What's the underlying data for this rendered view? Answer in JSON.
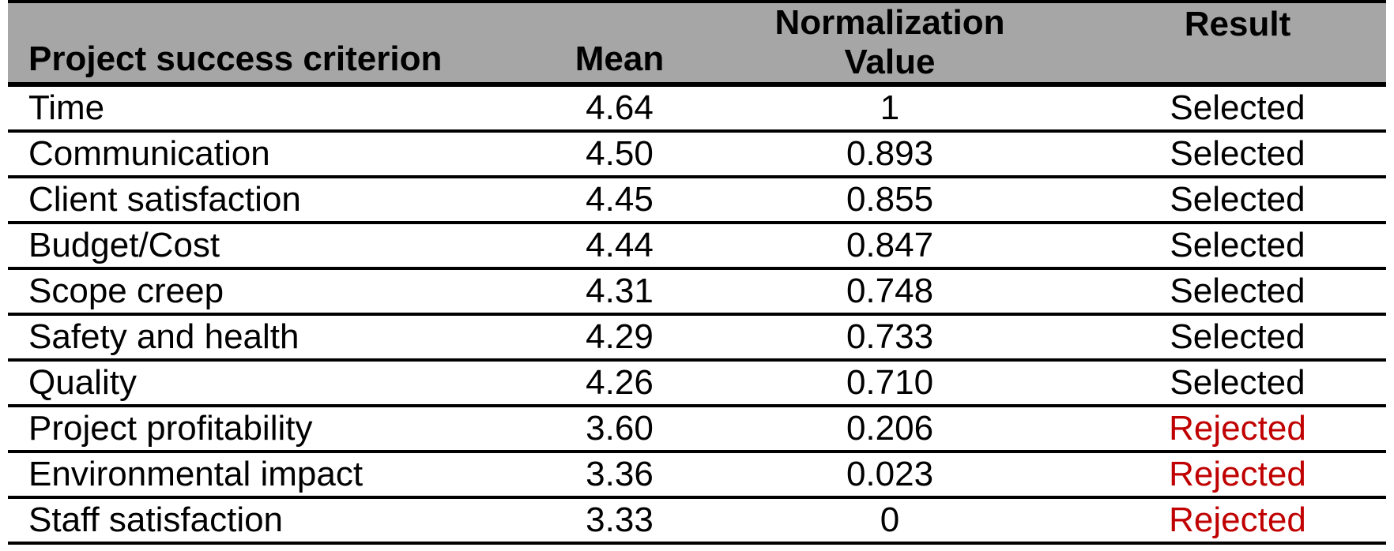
{
  "table": {
    "header": {
      "criterion": "Project success criterion",
      "mean": "Mean",
      "normalization_line1": "Normalization",
      "normalization_line2": "Value",
      "result": "Result"
    },
    "rows": [
      {
        "criterion": "Time",
        "mean": "4.64",
        "normalization": "1",
        "result": "Selected"
      },
      {
        "criterion": "Communication",
        "mean": "4.50",
        "normalization": "0.893",
        "result": "Selected"
      },
      {
        "criterion": "Client satisfaction",
        "mean": "4.45",
        "normalization": "0.855",
        "result": "Selected"
      },
      {
        "criterion": "Budget/Cost",
        "mean": "4.44",
        "normalization": "0.847",
        "result": "Selected"
      },
      {
        "criterion": "Scope creep",
        "mean": "4.31",
        "normalization": "0.748",
        "result": "Selected"
      },
      {
        "criterion": "Safety and health",
        "mean": "4.29",
        "normalization": "0.733",
        "result": "Selected"
      },
      {
        "criterion": "Quality",
        "mean": "4.26",
        "normalization": "0.710",
        "result": "Selected"
      },
      {
        "criterion": "Project profitability",
        "mean": "3.60",
        "normalization": "0.206",
        "result": "Rejected"
      },
      {
        "criterion": "Environmental impact",
        "mean": "3.36",
        "normalization": "0.023",
        "result": "Rejected"
      },
      {
        "criterion": "Staff satisfaction",
        "mean": "3.33",
        "normalization": "0",
        "result": "Rejected"
      }
    ],
    "colors": {
      "header_bg": "#a6a6a6",
      "border": "#000000",
      "selected": "#000000",
      "rejected": "#c00000"
    }
  }
}
